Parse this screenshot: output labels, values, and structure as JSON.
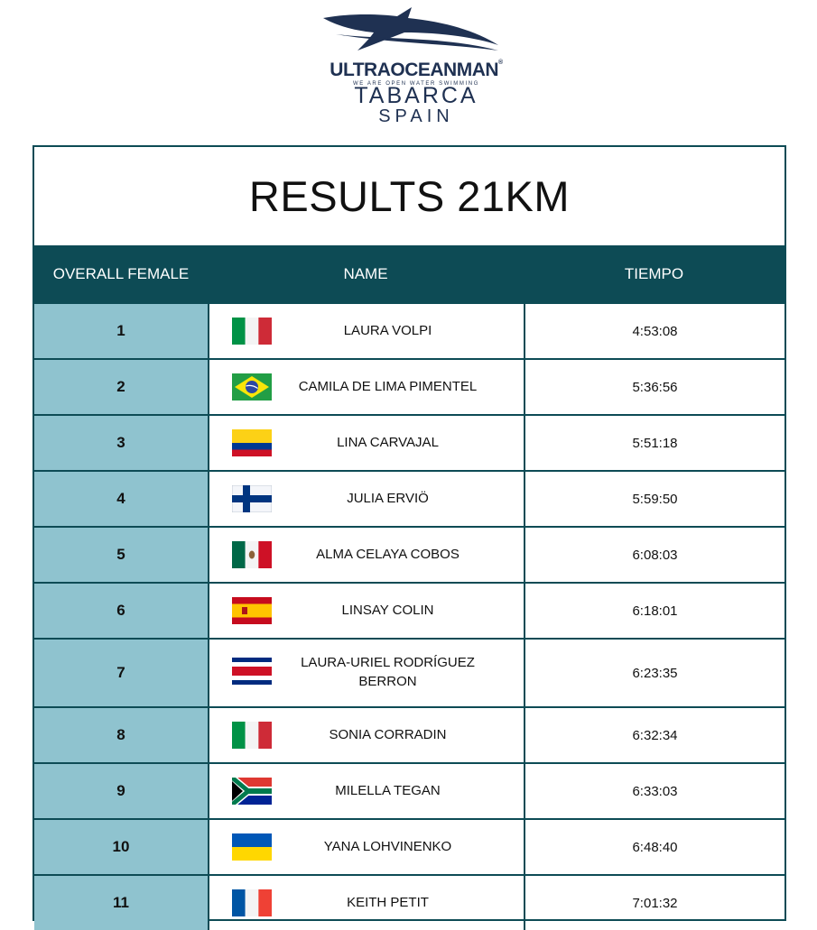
{
  "brand": {
    "name": "ULTRAOCEANMAN",
    "tm": "®",
    "tagline": "WE ARE OPEN WATER SWIMMING",
    "place": "TABARCA",
    "country": "SPAIN"
  },
  "title": "RESULTS 21KM",
  "headers": {
    "rank": "OVERALL FEMALE",
    "name": "NAME",
    "time": "TIEMPO"
  },
  "rows": [
    {
      "rank": "1",
      "name": "LAURA VOLPI",
      "time": "4:53:08",
      "flag": "italy-flag-icon"
    },
    {
      "rank": "2",
      "name": "CAMILA DE LIMA PIMENTEL",
      "time": "5:36:56",
      "flag": "brazil-flag-icon"
    },
    {
      "rank": "3",
      "name": "LINA CARVAJAL",
      "time": "5:51:18",
      "flag": "colombia-flag-icon"
    },
    {
      "rank": "4",
      "name": "JULIA ERVIÖ",
      "time": "5:59:50",
      "flag": "finland-flag-icon"
    },
    {
      "rank": "5",
      "name": "ALMA CELAYA COBOS",
      "time": "6:08:03",
      "flag": "mexico-flag-icon"
    },
    {
      "rank": "6",
      "name": "LINSAY COLIN",
      "time": "6:18:01",
      "flag": "spain-flag-icon"
    },
    {
      "rank": "7",
      "name": "LAURA-URIEL RODRÍGUEZ BERRON",
      "name_line1": "LAURA-URIEL RODRÍGUEZ",
      "name_line2": "BERRON",
      "time": "6:23:35",
      "flag": "costa-rica-flag-icon"
    },
    {
      "rank": "8",
      "name": "SONIA CORRADIN",
      "time": "6:32:34",
      "flag": "italy-flag-icon"
    },
    {
      "rank": "9",
      "name": "MILELLA TEGAN",
      "time": "6:33:03",
      "flag": "south-africa-flag-icon"
    },
    {
      "rank": "10",
      "name": "YANA LOHVINENKO",
      "time": "6:48:40",
      "flag": "ukraine-flag-icon"
    },
    {
      "rank": "11",
      "name": "KEITH PETIT",
      "time": "7:01:32",
      "flag": "france-flag-icon"
    }
  ],
  "colors": {
    "header_bg": "#0d4b55",
    "rank_bg": "#8fc3cf",
    "brand": "#1f3152"
  }
}
